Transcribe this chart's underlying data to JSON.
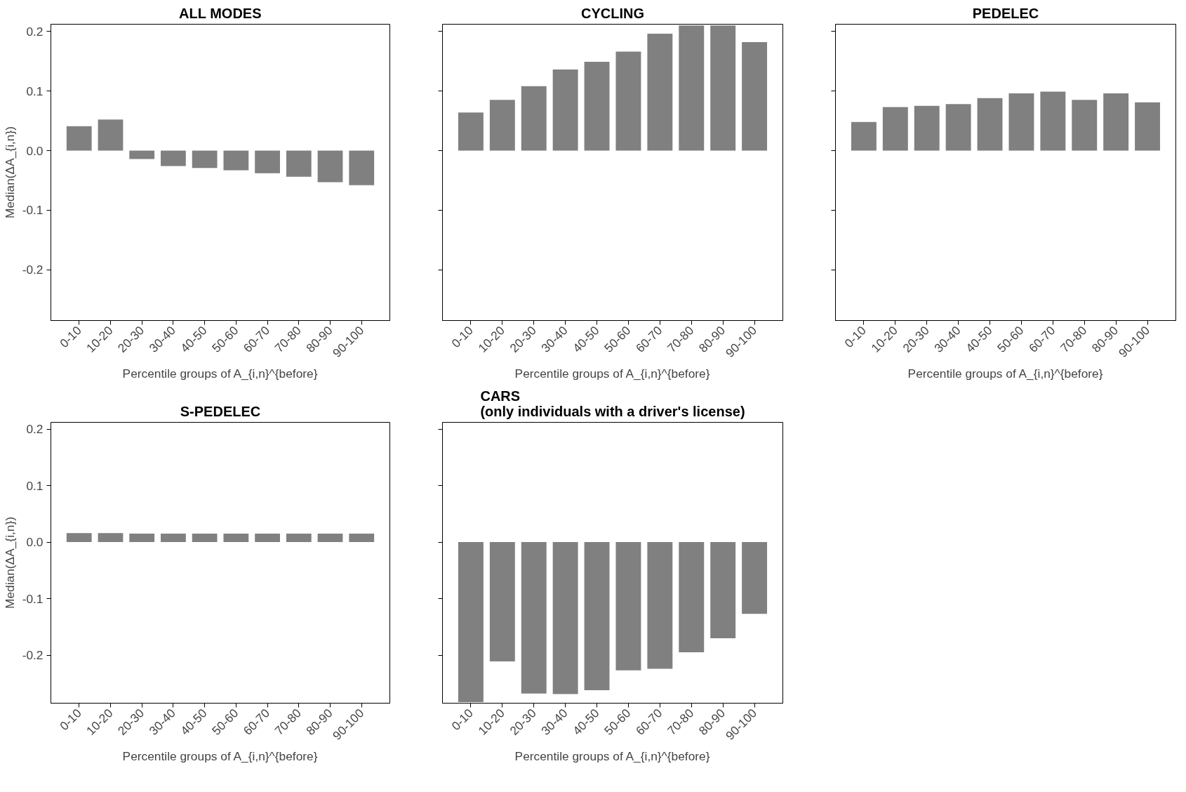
{
  "chart_data": [
    {
      "type": "bar",
      "title": "ALL MODES",
      "xlabel": "Percentile groups of A_{i,n}^{before}",
      "ylabel": "Median(ΔA_{i,n})",
      "categories": [
        "0-10",
        "10-20",
        "20-30",
        "30-40",
        "40-50",
        "50-60",
        "60-70",
        "70-80",
        "80-90",
        "90-100"
      ],
      "values": [
        0.041,
        0.052,
        -0.014,
        -0.026,
        -0.029,
        -0.033,
        -0.038,
        -0.044,
        -0.053,
        -0.058
      ],
      "color": "#808080",
      "ylim": [
        -0.285,
        0.212
      ],
      "yticks": [
        {
          "value": -0.2,
          "label": "-0.2"
        },
        {
          "value": -0.1,
          "label": "-0.1"
        },
        {
          "value": 0,
          "label": "0.0"
        },
        {
          "value": 0.1,
          "label": "0.1"
        },
        {
          "value": 0.2,
          "label": "0.2"
        }
      ]
    },
    {
      "type": "bar",
      "title": "CYCLING",
      "xlabel": "Percentile groups of A_{i,n}^{before}",
      "categories": [
        "0-10",
        "10-20",
        "20-30",
        "30-40",
        "40-50",
        "50-60",
        "60-70",
        "70-80",
        "80-90",
        "90-100"
      ],
      "values": [
        0.064,
        0.085,
        0.108,
        0.136,
        0.149,
        0.166,
        0.196,
        0.21,
        0.21,
        0.182
      ],
      "color": "#808080",
      "ylim": [
        -0.285,
        0.212
      ],
      "yticks": [
        {
          "value": -0.2,
          "label": null
        },
        {
          "value": -0.1,
          "label": null
        },
        {
          "value": 0,
          "label": null
        },
        {
          "value": 0.1,
          "label": null
        },
        {
          "value": 0.2,
          "label": null
        }
      ],
      "tick_labels": "x"
    },
    {
      "type": "bar",
      "title": "PEDELEC",
      "xlabel": "Percentile groups of A_{i,n}^{before}",
      "categories": [
        "0-10",
        "10-20",
        "20-30",
        "30-40",
        "40-50",
        "50-60",
        "60-70",
        "70-80",
        "80-90",
        "90-100"
      ],
      "values": [
        0.048,
        0.073,
        0.075,
        0.078,
        0.088,
        0.096,
        0.099,
        0.085,
        0.096,
        0.081
      ],
      "color": "#808080",
      "ylim": [
        -0.285,
        0.212
      ],
      "yticks": [
        {
          "value": -0.2,
          "label": null
        },
        {
          "value": -0.1,
          "label": null
        },
        {
          "value": 0,
          "label": null
        },
        {
          "value": 0.1,
          "label": null
        },
        {
          "value": 0.2,
          "label": null
        }
      ],
      "tick_labels": "x"
    },
    {
      "type": "bar",
      "title": "S-PEDELEC",
      "xlabel": "Percentile groups of A_{i,n}^{before}",
      "ylabel": "Median(ΔA_{i,n})",
      "categories": [
        "0-10",
        "10-20",
        "20-30",
        "30-40",
        "40-50",
        "50-60",
        "60-70",
        "70-80",
        "80-90",
        "90-100"
      ],
      "values": [
        0.016,
        0.016,
        0.015,
        0.015,
        0.015,
        0.015,
        0.015,
        0.015,
        0.015,
        0.015
      ],
      "color": "#808080",
      "ylim": [
        -0.285,
        0.212
      ],
      "yticks": [
        {
          "value": -0.2,
          "label": "-0.2"
        },
        {
          "value": -0.1,
          "label": "-0.1"
        },
        {
          "value": 0,
          "label": "0.0"
        },
        {
          "value": 0.1,
          "label": "0.1"
        },
        {
          "value": 0.2,
          "label": "0.2"
        }
      ]
    },
    {
      "type": "bar",
      "title": "CARS\n(only individuals with a driver's license)",
      "xlabel": "Percentile groups of A_{i,n}^{before}",
      "categories": [
        "0-10",
        "10-20",
        "20-30",
        "30-40",
        "40-50",
        "50-60",
        "60-70",
        "70-80",
        "80-90",
        "90-100"
      ],
      "values": [
        -0.283,
        -0.211,
        -0.268,
        -0.269,
        -0.262,
        -0.227,
        -0.224,
        -0.195,
        -0.17,
        -0.127
      ],
      "color": "#808080",
      "ylim": [
        -0.285,
        0.212
      ],
      "yticks": [
        {
          "value": -0.2,
          "label": null
        },
        {
          "value": -0.1,
          "label": null
        },
        {
          "value": 0,
          "label": null
        },
        {
          "value": 0.1,
          "label": null
        },
        {
          "value": 0.2,
          "label": null
        }
      ],
      "tick_labels": "x"
    }
  ]
}
